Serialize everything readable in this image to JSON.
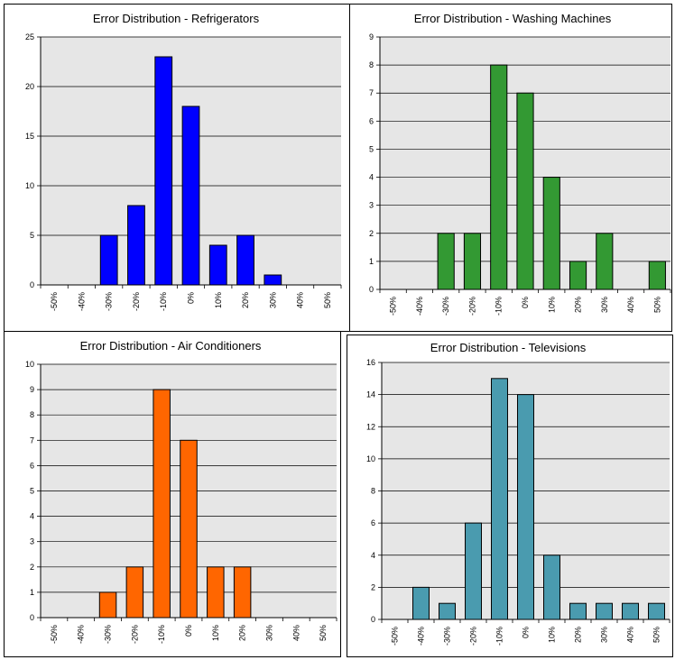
{
  "chart_data": [
    {
      "type": "bar",
      "title": "Error Distribution - Refrigerators",
      "categories": [
        "-50%",
        "-40%",
        "-30%",
        "-20%",
        "-10%",
        "0%",
        "10%",
        "20%",
        "30%",
        "40%",
        "50%"
      ],
      "values": [
        0,
        0,
        5,
        8,
        23,
        18,
        4,
        5,
        1,
        0,
        0
      ],
      "ylim": [
        0,
        25
      ],
      "yticks": [
        0,
        5,
        10,
        15,
        20,
        25
      ],
      "color": "#0000FF",
      "grid": true
    },
    {
      "type": "bar",
      "title": "Error Distribution - Washing Machines",
      "categories": [
        "-50%",
        "-40%",
        "-30%",
        "-20%",
        "-10%",
        "0%",
        "10%",
        "20%",
        "30%",
        "40%",
        "50%"
      ],
      "values": [
        0,
        0,
        2,
        2,
        8,
        7,
        4,
        1,
        2,
        0,
        1
      ],
      "ylim": [
        0,
        9
      ],
      "yticks": [
        0,
        1,
        2,
        3,
        4,
        5,
        6,
        7,
        8,
        9
      ],
      "color": "#339933",
      "grid": true
    },
    {
      "type": "bar",
      "title": "Error Distribution - Air Conditioners",
      "categories": [
        "-50%",
        "-40%",
        "-30%",
        "-20%",
        "-10%",
        "0%",
        "10%",
        "20%",
        "30%",
        "40%",
        "50%"
      ],
      "values": [
        0,
        0,
        1,
        2,
        9,
        7,
        2,
        2,
        0,
        0,
        0
      ],
      "ylim": [
        0,
        10
      ],
      "yticks": [
        0,
        1,
        2,
        3,
        4,
        5,
        6,
        7,
        8,
        9,
        10
      ],
      "color": "#FF6600",
      "grid": true
    },
    {
      "type": "bar",
      "title": "Error Distribution - Televisions",
      "categories": [
        "-50%",
        "-40%",
        "-30%",
        "-20%",
        "-10%",
        "0%",
        "10%",
        "20%",
        "30%",
        "40%",
        "50%"
      ],
      "values": [
        0,
        2,
        1,
        6,
        15,
        14,
        4,
        1,
        1,
        1,
        1
      ],
      "ylim": [
        0,
        16
      ],
      "yticks": [
        0,
        2,
        4,
        6,
        8,
        10,
        12,
        14,
        16
      ],
      "color": "#4A9BAF",
      "grid": true
    }
  ]
}
